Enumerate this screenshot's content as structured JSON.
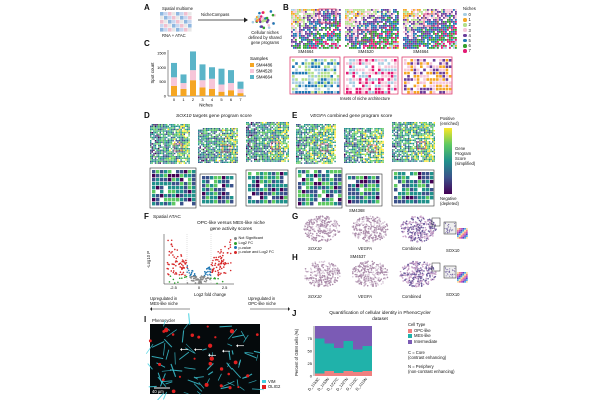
{
  "panels": {
    "a": {
      "label": "A",
      "input_label": "Spatial multiome",
      "modalities": "RNA + ATAC",
      "method": "NicheCompass",
      "output_line1": "Cellular niches",
      "output_line2": "defined by shared",
      "output_line3": "gene programs"
    },
    "b": {
      "label": "B",
      "samples": [
        "SM4664",
        "SM4520",
        "SM4664"
      ],
      "caption": "Insets of niche architecture",
      "legend_title": "Niches",
      "niches": [
        {
          "name": "0",
          "color": "#a6cee3"
        },
        {
          "name": "1",
          "color": "#f5a623"
        },
        {
          "name": "2",
          "color": "#b2df8a"
        },
        {
          "name": "3",
          "color": "#f7c6d9"
        },
        {
          "name": "4",
          "color": "#6a3d9a"
        },
        {
          "name": "5",
          "color": "#1f78b4"
        },
        {
          "name": "6",
          "color": "#33a02c"
        },
        {
          "name": "7",
          "color": "#e31a74"
        }
      ]
    },
    "c": {
      "label": "C"
    },
    "d": {
      "label": "D",
      "gene": "SOX10",
      "title": "targets gene program score"
    },
    "e": {
      "label": "E",
      "gene": "VEGFA",
      "title": "combined gene program score",
      "sample": "SM4368",
      "colorbar": {
        "top1": "Positive",
        "top2": "(enriched)",
        "title1": "Gene",
        "title2": "Program",
        "title3": "Score",
        "title4": "(simplified)",
        "bottom1": "Negative",
        "bottom2": "(depleted)"
      }
    },
    "f": {
      "label": "F",
      "subtitle": "Spatial ATAC",
      "title1": "OPC-like versus MES-like niche",
      "title2": "gene activity scores",
      "ylabel": "-Log10 P",
      "xlabel": "Log2 fold change",
      "left1": "Upregulated in",
      "left2": "MES-like niche",
      "right1": "Upregulated in",
      "right2": "OPC-like niche",
      "legend": [
        {
          "name": "Not Significant",
          "color": "#888888"
        },
        {
          "name": "Log2 FC",
          "color": "#2ca02c"
        },
        {
          "name": "p-value",
          "color": "#1f77b4"
        },
        {
          "name": "p-value and Log2 FC",
          "color": "#d62728"
        }
      ],
      "xticks": [
        "-2.5",
        "0",
        "2.5"
      ]
    },
    "g": {
      "label": "G",
      "labels": [
        "SOX10",
        "VEGFA",
        "Combined"
      ],
      "cmap_x": "SOX10"
    },
    "h": {
      "label": "H",
      "sample": "SM4537",
      "labels": [
        "SOX10",
        "VEGFA",
        "Combined"
      ],
      "cmap_x": "SOX10"
    },
    "i": {
      "label": "I",
      "subtitle": "Phenocycler",
      "scalebar": "40 µm",
      "legend": [
        {
          "name": "VIM",
          "color": "#3fd0e0"
        },
        {
          "name": "OLIG2",
          "color": "#e02020"
        }
      ]
    },
    "j": {
      "label": "J",
      "core1": "C = Core",
      "core2": "(contrast enhancing)",
      "periph1": "N = Periphery",
      "periph2": "(non-contrast enhancing)"
    }
  },
  "bar_chart": {
    "type": "bar",
    "xlabel": "Niches",
    "ylabel": "Spot count",
    "categories": [
      "0",
      "1",
      "2",
      "3",
      "4",
      "5",
      "6",
      "7"
    ],
    "yticks": [
      "0",
      "500",
      "1000",
      "1500"
    ],
    "series": [
      {
        "name": "SM4486",
        "color": "#f5a623",
        "values": [
          350,
          250,
          550,
          300,
          250,
          150,
          200,
          100
        ]
      },
      {
        "name": "SM4520",
        "color": "#f7c6d9",
        "values": [
          300,
          200,
          350,
          250,
          350,
          250,
          250,
          150
        ]
      },
      {
        "name": "SM4664",
        "color": "#5ab4c8",
        "values": [
          500,
          300,
          650,
          550,
          400,
          550,
          450,
          250
        ]
      }
    ],
    "legend_title": "Samples"
  },
  "chart_data": {
    "type": "bar",
    "title1": "Quantification of cellular identity in PhenoCycler",
    "title2": "dataset",
    "ylabel": "Percent of GBM cells (%)",
    "yticks": [
      "0",
      "25",
      "50",
      "75"
    ],
    "categories": [
      "D_1153C",
      "D_1153N",
      "D_1227C",
      "D_1227N",
      "D_1115C",
      "D_1115N"
    ],
    "legend_title": "Cell Type",
    "series": [
      {
        "name": "OPC-like",
        "color": "#f08080",
        "values": [
          5,
          10,
          6,
          10,
          8,
          10
        ]
      },
      {
        "name": "MES-like",
        "color": "#20b2aa",
        "values": [
          70,
          55,
          50,
          60,
          45,
          50
        ]
      },
      {
        "name": "Intermediate",
        "color": "#7b5bb5",
        "values": [
          25,
          35,
          44,
          30,
          47,
          40
        ]
      }
    ]
  }
}
